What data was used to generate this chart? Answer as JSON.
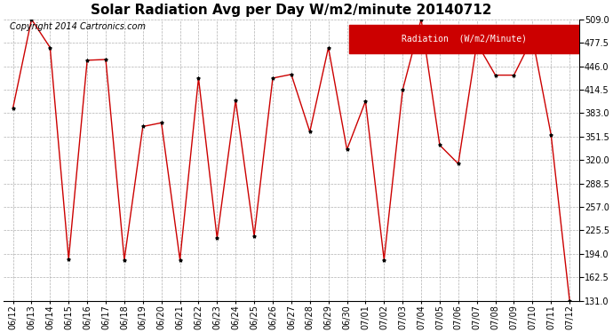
{
  "title": "Solar Radiation Avg per Day W/m2/minute 20140712",
  "copyright": "Copyright 2014 Cartronics.com",
  "legend_label": "Radiation  (W/m2/Minute)",
  "dates": [
    "06/12",
    "06/13",
    "06/14",
    "06/15",
    "06/16",
    "06/17",
    "06/18",
    "06/19",
    "06/20",
    "06/21",
    "06/22",
    "06/23",
    "06/24",
    "06/25",
    "06/26",
    "06/27",
    "06/28",
    "06/29",
    "06/30",
    "07/01",
    "07/02",
    "07/03",
    "07/04",
    "07/05",
    "07/06",
    "07/07",
    "07/08",
    "07/09",
    "07/10",
    "07/11",
    "07/12"
  ],
  "values": [
    390,
    509,
    471,
    187,
    454,
    455,
    186,
    365,
    370,
    186,
    430,
    215,
    400,
    218,
    430,
    435,
    358,
    471,
    334,
    399,
    186,
    414,
    509,
    340,
    315,
    477,
    434,
    434,
    484,
    354,
    131
  ],
  "ylim_min": 131.0,
  "ylim_max": 509.0,
  "yticks": [
    131.0,
    162.5,
    194.0,
    225.5,
    257.0,
    288.5,
    320.0,
    351.5,
    383.0,
    414.5,
    446.0,
    477.5,
    509.0
  ],
  "line_color": "#cc0000",
  "marker_color": "#000000",
  "bg_color": "#ffffff",
  "grid_color": "#b0b0b0",
  "title_fontsize": 11,
  "copyright_fontsize": 7,
  "tick_fontsize": 7,
  "legend_bg": "#cc0000",
  "legend_text_color": "#ffffff",
  "legend_fontsize": 7
}
